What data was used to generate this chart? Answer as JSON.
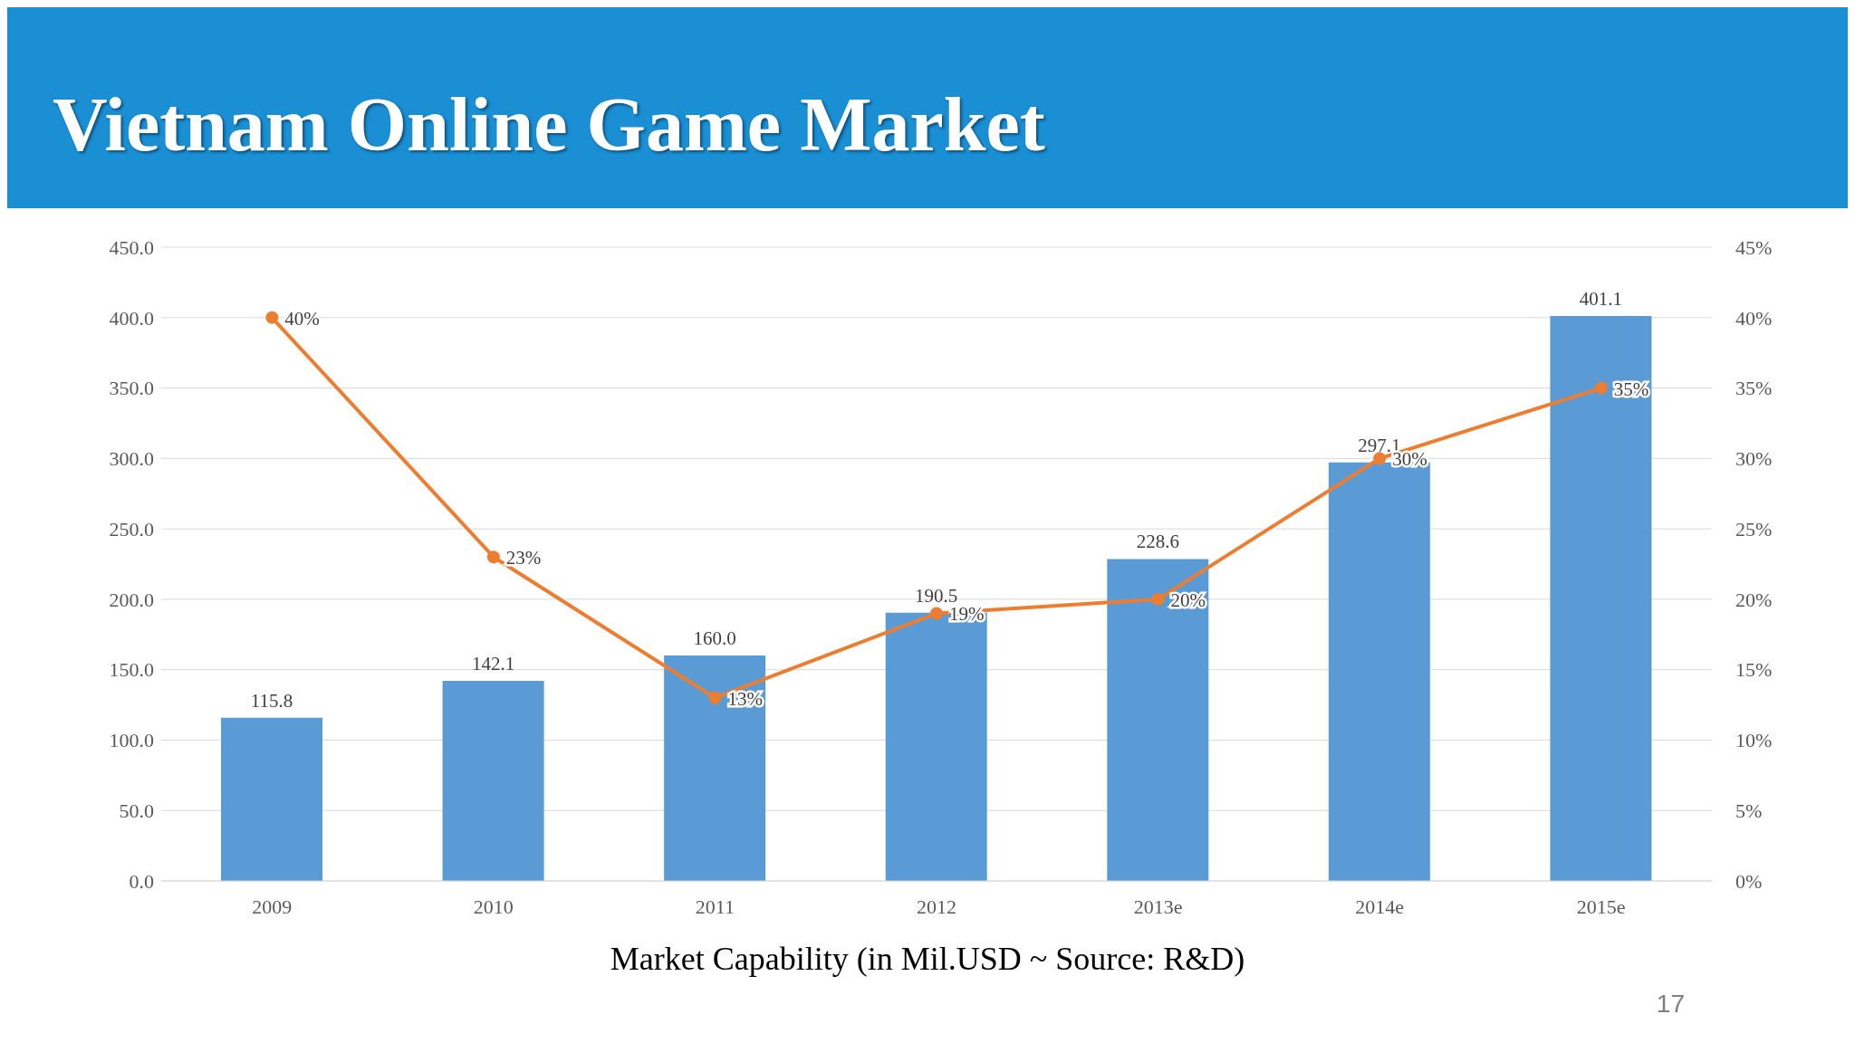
{
  "chart_data": {
    "type": "bar",
    "title": "Vietnam Online Game Market",
    "xlabel": "Market Capability (in Mil.USD ~ Source: R&D)",
    "categories": [
      "2009",
      "2010",
      "2011",
      "2012",
      "2013e",
      "2014e",
      "2015e"
    ],
    "series": [
      {
        "color": "#5b9bd5",
        "values": [
          115.8,
          142.1,
          160.0,
          190.5,
          228.6,
          297.1,
          401.1
        ],
        "value_labels": [
          "115.8",
          "142.1",
          "160.0",
          "190.5",
          "228.6",
          "297.1",
          "401.1"
        ]
      },
      {
        "type": "line",
        "axis": "y2",
        "color": "#ed7d31",
        "marker": "circle",
        "line_style": "solid",
        "values": [
          40,
          23,
          13,
          19,
          20,
          30,
          35
        ],
        "value_labels": [
          "40%",
          "23%",
          "13%",
          "19%",
          "20%",
          "30%",
          "35%"
        ]
      }
    ],
    "ylim": [
      0,
      450
    ],
    "yticks": [
      {
        "value": 0,
        "label": "0.0"
      },
      {
        "value": 50,
        "label": "50.0"
      },
      {
        "value": 100,
        "label": "100.0"
      },
      {
        "value": 150,
        "label": "150.0"
      },
      {
        "value": 200,
        "label": "200.0"
      },
      {
        "value": 250,
        "label": "250.0"
      },
      {
        "value": 300,
        "label": "300.0"
      },
      {
        "value": 350,
        "label": "350.0"
      },
      {
        "value": 400,
        "label": "400.0"
      },
      {
        "value": 450,
        "label": "450.0"
      }
    ],
    "y2lim": [
      0,
      45
    ],
    "y2ticks": [
      {
        "value": 0,
        "label": "0%"
      },
      {
        "value": 5,
        "label": "5%"
      },
      {
        "value": 10,
        "label": "10%"
      },
      {
        "value": 15,
        "label": "15%"
      },
      {
        "value": 20,
        "label": "20%"
      },
      {
        "value": 25,
        "label": "25%"
      },
      {
        "value": 30,
        "label": "30%"
      },
      {
        "value": 35,
        "label": "35%"
      },
      {
        "value": 40,
        "label": "40%"
      },
      {
        "value": 45,
        "label": "45%"
      }
    ],
    "grid": "y",
    "legend": false,
    "annotations": [
      "17"
    ]
  }
}
